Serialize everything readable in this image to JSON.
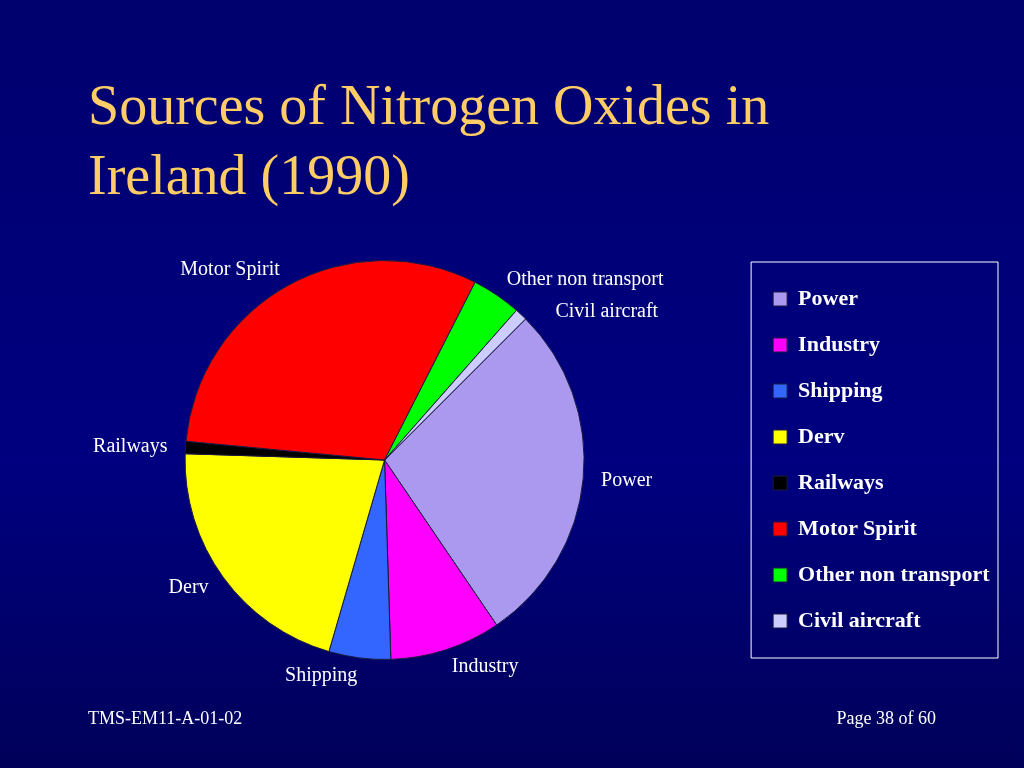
{
  "chart_data": {
    "type": "pie",
    "title": "Sources of Nitrogen Oxides in Ireland (1990)",
    "categories": [
      "Power",
      "Industry",
      "Shipping",
      "Derv",
      "Railways",
      "Motor Spirit",
      "Other non transport",
      "Civil aircraft"
    ],
    "values": [
      28,
      9,
      5,
      21,
      1,
      31,
      4,
      1
    ],
    "colors": [
      "#aa99ee",
      "#ff00ff",
      "#3366ff",
      "#ffff00",
      "#000000",
      "#ff0000",
      "#00ff00",
      "#ccccff"
    ],
    "legend": "right",
    "annotations": [
      "TMS-EM11-A-01-02",
      "Page 38 of 60"
    ]
  }
}
